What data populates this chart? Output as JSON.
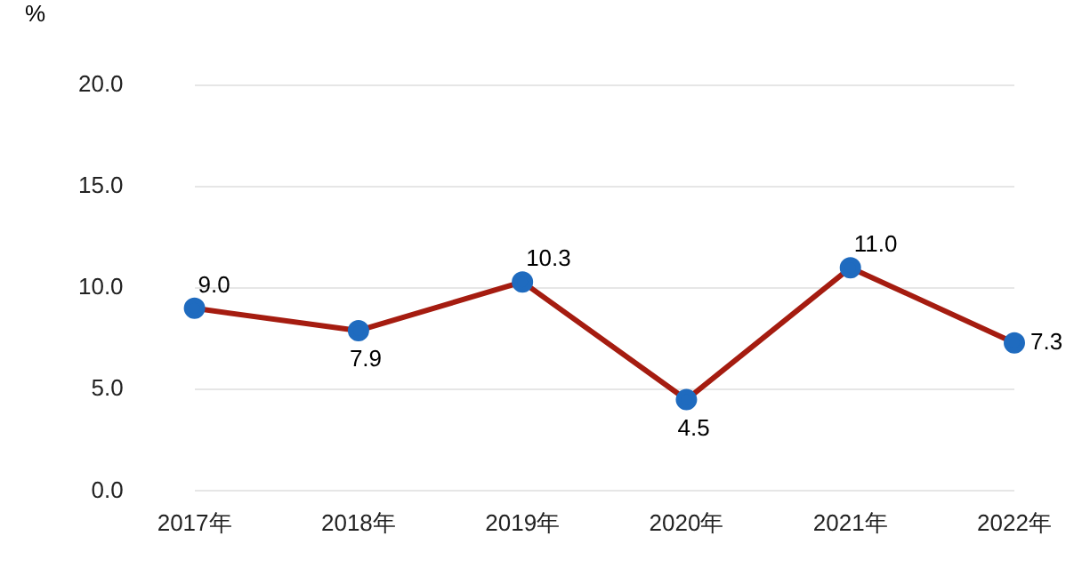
{
  "chart_data": {
    "type": "line",
    "ylabel": "%",
    "categories": [
      "2017年",
      "2018年",
      "2019年",
      "2020年",
      "2021年",
      "2022年"
    ],
    "series": [
      {
        "color": "#a51c10",
        "colors": [
          "#1f6bbf",
          "#1f6bbf",
          "#1f6bbf",
          "#1f6bbf",
          "#1f6bbf",
          "#1f6bbf"
        ],
        "values": [
          9.0,
          7.9,
          10.3,
          4.5,
          11.0,
          7.3
        ],
        "value_labels": [
          "9.0",
          "7.9",
          "10.3",
          "4.5",
          "11.0",
          "7.3"
        ]
      }
    ],
    "ylim": [
      0,
      20
    ],
    "yticks": [
      {
        "value": 0,
        "label": "0.0"
      },
      {
        "value": 5,
        "label": "5.0"
      },
      {
        "value": 10,
        "label": "10.0"
      },
      {
        "value": 15,
        "label": "15.0"
      },
      {
        "value": 20,
        "label": "20.0"
      }
    ],
    "grid": "y",
    "marker": "circle",
    "legend": false
  }
}
